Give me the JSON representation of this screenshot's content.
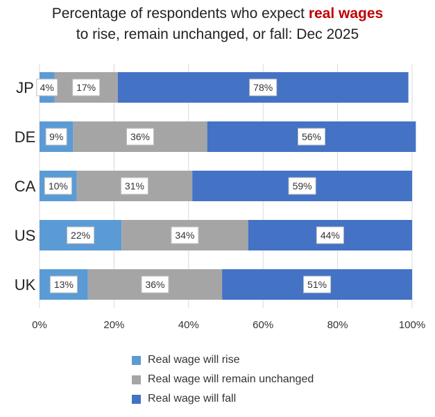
{
  "chart_data": {
    "type": "bar",
    "orientation": "horizontal-stacked-100",
    "title_part1": "Percentage of respondents who expect ",
    "title_highlight": "real wages",
    "title_part2": "to rise, remain unchanged, or fall: Dec 2025",
    "categories": [
      "JP",
      "DE",
      "CA",
      "US",
      "UK"
    ],
    "series": [
      {
        "name": "Real wage will rise",
        "color": "#5b9bd5",
        "values": [
          4,
          9,
          10,
          22,
          13
        ]
      },
      {
        "name": "Real wage will remain unchanged",
        "color": "#a5a5a5",
        "values": [
          17,
          36,
          31,
          34,
          36
        ]
      },
      {
        "name": "Real wage will fall",
        "color": "#4472c4",
        "values": [
          78,
          56,
          59,
          44,
          51
        ]
      }
    ],
    "xlim": [
      0,
      100
    ],
    "xticks": [
      "0%",
      "20%",
      "40%",
      "60%",
      "80%",
      "100%"
    ],
    "grid": true,
    "legend_position": "bottom",
    "highlight_color": "#c00000"
  }
}
